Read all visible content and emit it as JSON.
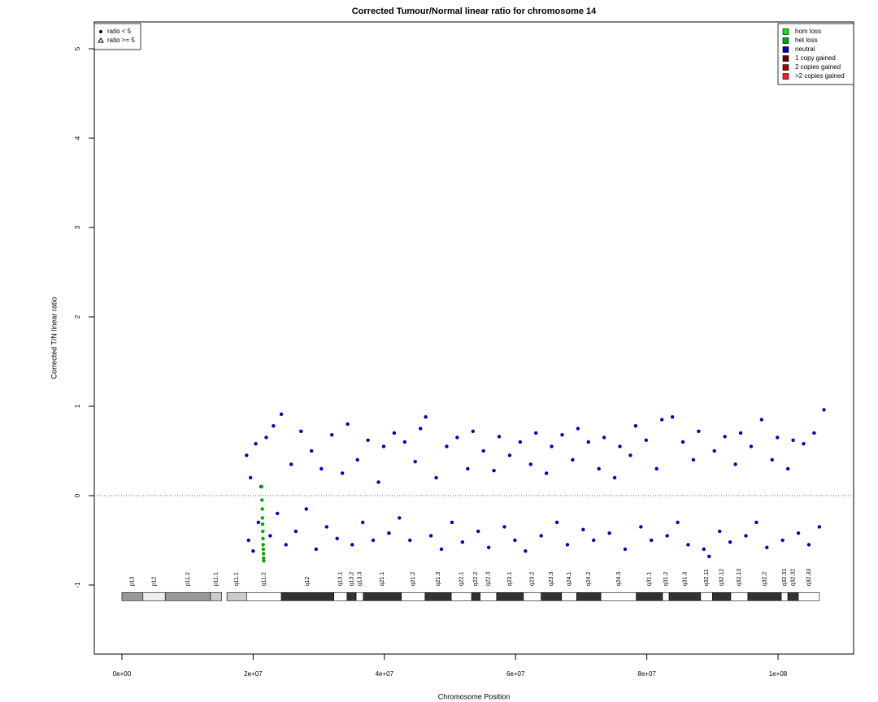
{
  "chart_data": {
    "type": "scatter",
    "title": "Corrected Tumour/Normal linear ratio for chromosome  14",
    "x_label": "Chromosome Position",
    "y_label": "Corrected T/N linear ratio",
    "xlim": [
      -4210000,
      111520000
    ],
    "ylim": [
      -1.773,
      5.3
    ],
    "xticks": [
      {
        "value": 0,
        "label": "0e+00"
      },
      {
        "value": 20000000,
        "label": "2e+07"
      },
      {
        "value": 40000000,
        "label": "4e+07"
      },
      {
        "value": 60000000,
        "label": "6e+07"
      },
      {
        "value": 80000000,
        "label": "8e+07"
      },
      {
        "value": 100000000,
        "label": "1e+08"
      }
    ],
    "yticks": [
      -1,
      0,
      1,
      2,
      3,
      4,
      5
    ],
    "reference_line": 0,
    "shape_legend": [
      {
        "name": "ratio < 5",
        "shape": "circle"
      },
      {
        "name": "ratio >= 5",
        "shape": "triangle"
      }
    ],
    "legend": [
      {
        "name": "hom loss",
        "color": "#00ee00"
      },
      {
        "name": "het loss",
        "color": "#00aa00"
      },
      {
        "name": "neutral",
        "color": "#0000bb"
      },
      {
        "name": "1 copy gained",
        "color": "#660000"
      },
      {
        "name": "2 copies gained",
        "color": "#aa0000"
      },
      {
        "name": ">2 copies gained",
        "color": "#ee2020"
      }
    ],
    "series": [
      {
        "name": "neutral",
        "color": "#0000bb",
        "x": [
          19000000,
          19300000,
          19600000,
          20000000,
          20400000,
          20800000,
          21200000,
          22000000,
          22600000,
          23100000,
          23700000,
          24300000,
          25000000,
          25800000,
          26500000,
          27300000,
          28100000,
          28900000,
          29600000,
          30400000,
          31200000,
          32000000,
          32800000,
          33600000,
          34400000,
          35100000,
          35900000,
          36700000,
          37500000,
          38300000,
          39100000,
          39900000,
          40700000,
          41500000,
          42300000,
          43100000,
          43900000,
          44700000,
          45500000,
          46300000,
          47100000,
          47900000,
          48700000,
          49500000,
          50300000,
          51100000,
          51900000,
          52700000,
          53500000,
          54300000,
          55100000,
          55900000,
          56700000,
          57500000,
          58300000,
          59100000,
          59900000,
          60700000,
          61500000,
          62300000,
          63100000,
          63900000,
          64700000,
          65500000,
          66300000,
          67100000,
          67900000,
          68700000,
          69500000,
          70300000,
          71100000,
          71900000,
          72700000,
          73500000,
          74300000,
          75100000,
          75900000,
          76700000,
          77500000,
          78300000,
          79100000,
          79900000,
          80700000,
          81500000,
          82300000,
          83100000,
          83900000,
          84700000,
          85500000,
          86300000,
          87100000,
          87900000,
          88700000,
          89500000,
          90300000,
          91100000,
          91900000,
          92700000,
          93500000,
          94300000,
          95100000,
          95900000,
          96700000,
          97500000,
          98300000,
          99100000,
          99900000,
          100700000,
          101500000,
          102300000,
          103100000,
          103900000,
          104700000,
          105500000,
          106300000,
          107000000
        ],
        "values": [
          0.45,
          -0.5,
          0.2,
          -0.62,
          0.58,
          -0.3,
          0.1,
          0.65,
          -0.45,
          0.78,
          -0.2,
          0.91,
          -0.55,
          0.35,
          -0.4,
          0.72,
          -0.15,
          0.5,
          -0.6,
          0.3,
          -0.35,
          0.68,
          -0.48,
          0.25,
          0.8,
          -0.55,
          0.4,
          -0.3,
          0.62,
          -0.5,
          0.15,
          0.55,
          -0.42,
          0.7,
          -0.25,
          0.6,
          -0.5,
          0.38,
          0.75,
          0.88,
          -0.45,
          0.2,
          -0.6,
          0.55,
          -0.3,
          0.65,
          -0.52,
          0.3,
          0.72,
          -0.4,
          0.5,
          -0.58,
          0.28,
          0.66,
          -0.35,
          0.45,
          -0.5,
          0.6,
          -0.62,
          0.35,
          0.7,
          -0.45,
          0.25,
          0.55,
          -0.3,
          0.68,
          -0.55,
          0.4,
          0.75,
          -0.38,
          0.6,
          -0.5,
          0.3,
          0.65,
          -0.42,
          0.2,
          0.55,
          -0.6,
          0.45,
          0.78,
          -0.35,
          0.62,
          -0.5,
          0.3,
          0.85,
          -0.45,
          0.88,
          -0.3,
          0.6,
          -0.55,
          0.4,
          0.72,
          -0.6,
          -0.68,
          0.5,
          -0.4,
          0.66,
          -0.52,
          0.35,
          0.7,
          -0.45,
          0.55,
          -0.3,
          0.85,
          -0.58,
          0.4,
          0.65,
          -0.5,
          0.3,
          0.62,
          -0.42,
          0.58,
          -0.55,
          0.7,
          -0.35,
          0.96
        ]
      },
      {
        "name": "het loss",
        "color": "#00aa00",
        "x": [
          21300000,
          21350000,
          21400000,
          21420000,
          21450000,
          21470000,
          21500000,
          21520000,
          21550000,
          21580000,
          21600000,
          21620000
        ],
        "values": [
          0.1,
          -0.05,
          -0.15,
          -0.25,
          -0.32,
          -0.4,
          -0.48,
          -0.55,
          -0.6,
          -0.65,
          -0.7,
          -0.73
        ]
      }
    ],
    "bands": [
      {
        "name": "p13",
        "start": 0,
        "end": 3200000,
        "color": "#999999"
      },
      {
        "name": "p12",
        "start": 3200000,
        "end": 6600000,
        "color": "#eeeeee"
      },
      {
        "name": "p11.2",
        "start": 6600000,
        "end": 13500000,
        "color": "#999999"
      },
      {
        "name": "p11.1",
        "start": 13500000,
        "end": 15200000,
        "color": "#cccccc"
      },
      {
        "name": "q11.1",
        "start": 16000000,
        "end": 19000000,
        "color": "#cccccc"
      },
      {
        "name": "q11.2",
        "start": 19000000,
        "end": 24300000,
        "color": "#ffffff"
      },
      {
        "name": "q12",
        "start": 24300000,
        "end": 32300000,
        "color": "#333333"
      },
      {
        "name": "q13.1",
        "start": 32300000,
        "end": 34300000,
        "color": "#ffffff"
      },
      {
        "name": "q13.2",
        "start": 34300000,
        "end": 35700000,
        "color": "#333333"
      },
      {
        "name": "q13.3",
        "start": 35700000,
        "end": 36800000,
        "color": "#ffffff"
      },
      {
        "name": "q21.1",
        "start": 36800000,
        "end": 42600000,
        "color": "#333333"
      },
      {
        "name": "q21.2",
        "start": 42600000,
        "end": 46200000,
        "color": "#ffffff"
      },
      {
        "name": "q21.3",
        "start": 46200000,
        "end": 50200000,
        "color": "#333333"
      },
      {
        "name": "q22.1",
        "start": 50200000,
        "end": 53300000,
        "color": "#ffffff"
      },
      {
        "name": "q22.2",
        "start": 53300000,
        "end": 54600000,
        "color": "#333333"
      },
      {
        "name": "q22.3",
        "start": 54600000,
        "end": 57100000,
        "color": "#ffffff"
      },
      {
        "name": "q23.1",
        "start": 57100000,
        "end": 61200000,
        "color": "#333333"
      },
      {
        "name": "q23.2",
        "start": 61200000,
        "end": 63900000,
        "color": "#ffffff"
      },
      {
        "name": "q23.3",
        "start": 63900000,
        "end": 67000000,
        "color": "#333333"
      },
      {
        "name": "q24.1",
        "start": 67000000,
        "end": 69300000,
        "color": "#ffffff"
      },
      {
        "name": "q24.2",
        "start": 69300000,
        "end": 73000000,
        "color": "#333333"
      },
      {
        "name": "q24.3",
        "start": 73000000,
        "end": 78400000,
        "color": "#ffffff"
      },
      {
        "name": "q31.1",
        "start": 78400000,
        "end": 82400000,
        "color": "#333333"
      },
      {
        "name": "q31.2",
        "start": 82400000,
        "end": 83400000,
        "color": "#ffffff"
      },
      {
        "name": "q31.3",
        "start": 83400000,
        "end": 88200000,
        "color": "#333333"
      },
      {
        "name": "q32.11",
        "start": 88200000,
        "end": 90000000,
        "color": "#ffffff"
      },
      {
        "name": "q32.12",
        "start": 90000000,
        "end": 92800000,
        "color": "#333333"
      },
      {
        "name": "q32.13",
        "start": 92800000,
        "end": 95400000,
        "color": "#ffffff"
      },
      {
        "name": "q32.2",
        "start": 95400000,
        "end": 100500000,
        "color": "#333333"
      },
      {
        "name": "q32.31",
        "start": 100500000,
        "end": 101500000,
        "color": "#ffffff"
      },
      {
        "name": "q32.32",
        "start": 101500000,
        "end": 103100000,
        "color": "#333333"
      },
      {
        "name": "q32.33",
        "start": 103100000,
        "end": 106300000,
        "color": "#ffffff"
      }
    ]
  }
}
